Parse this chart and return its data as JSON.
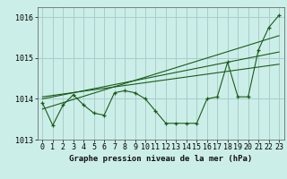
{
  "title": "Graphe pression niveau de la mer (hPa)",
  "background_color": "#cceee8",
  "grid_color": "#aacccc",
  "line_color": "#1a5c1a",
  "xlim": [
    -0.5,
    23.5
  ],
  "ylim": [
    1013.0,
    1016.25
  ],
  "yticks": [
    1013,
    1014,
    1015,
    1016
  ],
  "xticks": [
    0,
    1,
    2,
    3,
    4,
    5,
    6,
    7,
    8,
    9,
    10,
    11,
    12,
    13,
    14,
    15,
    16,
    17,
    18,
    19,
    20,
    21,
    22,
    23
  ],
  "series1_x": [
    0,
    1,
    2,
    3,
    4,
    5,
    6,
    7,
    8,
    9,
    10,
    11,
    12,
    13,
    14,
    15,
    16,
    17,
    18,
    19,
    20,
    21,
    22,
    23
  ],
  "series1_y": [
    1013.9,
    1013.35,
    1013.85,
    1014.1,
    1013.85,
    1013.65,
    1013.6,
    1014.15,
    1014.2,
    1014.15,
    1014.0,
    1013.7,
    1013.4,
    1013.4,
    1013.4,
    1013.4,
    1014.0,
    1014.05,
    1014.9,
    1014.05,
    1014.05,
    1015.2,
    1015.75,
    1016.05
  ],
  "series2_x": [
    0,
    23
  ],
  "series2_y": [
    1013.75,
    1015.55
  ],
  "series3_x": [
    0,
    23
  ],
  "series3_y": [
    1014.0,
    1015.15
  ],
  "series4_x": [
    0,
    23
  ],
  "series4_y": [
    1014.05,
    1014.85
  ],
  "tick_fontsize": 6,
  "label_fontsize": 6.5
}
